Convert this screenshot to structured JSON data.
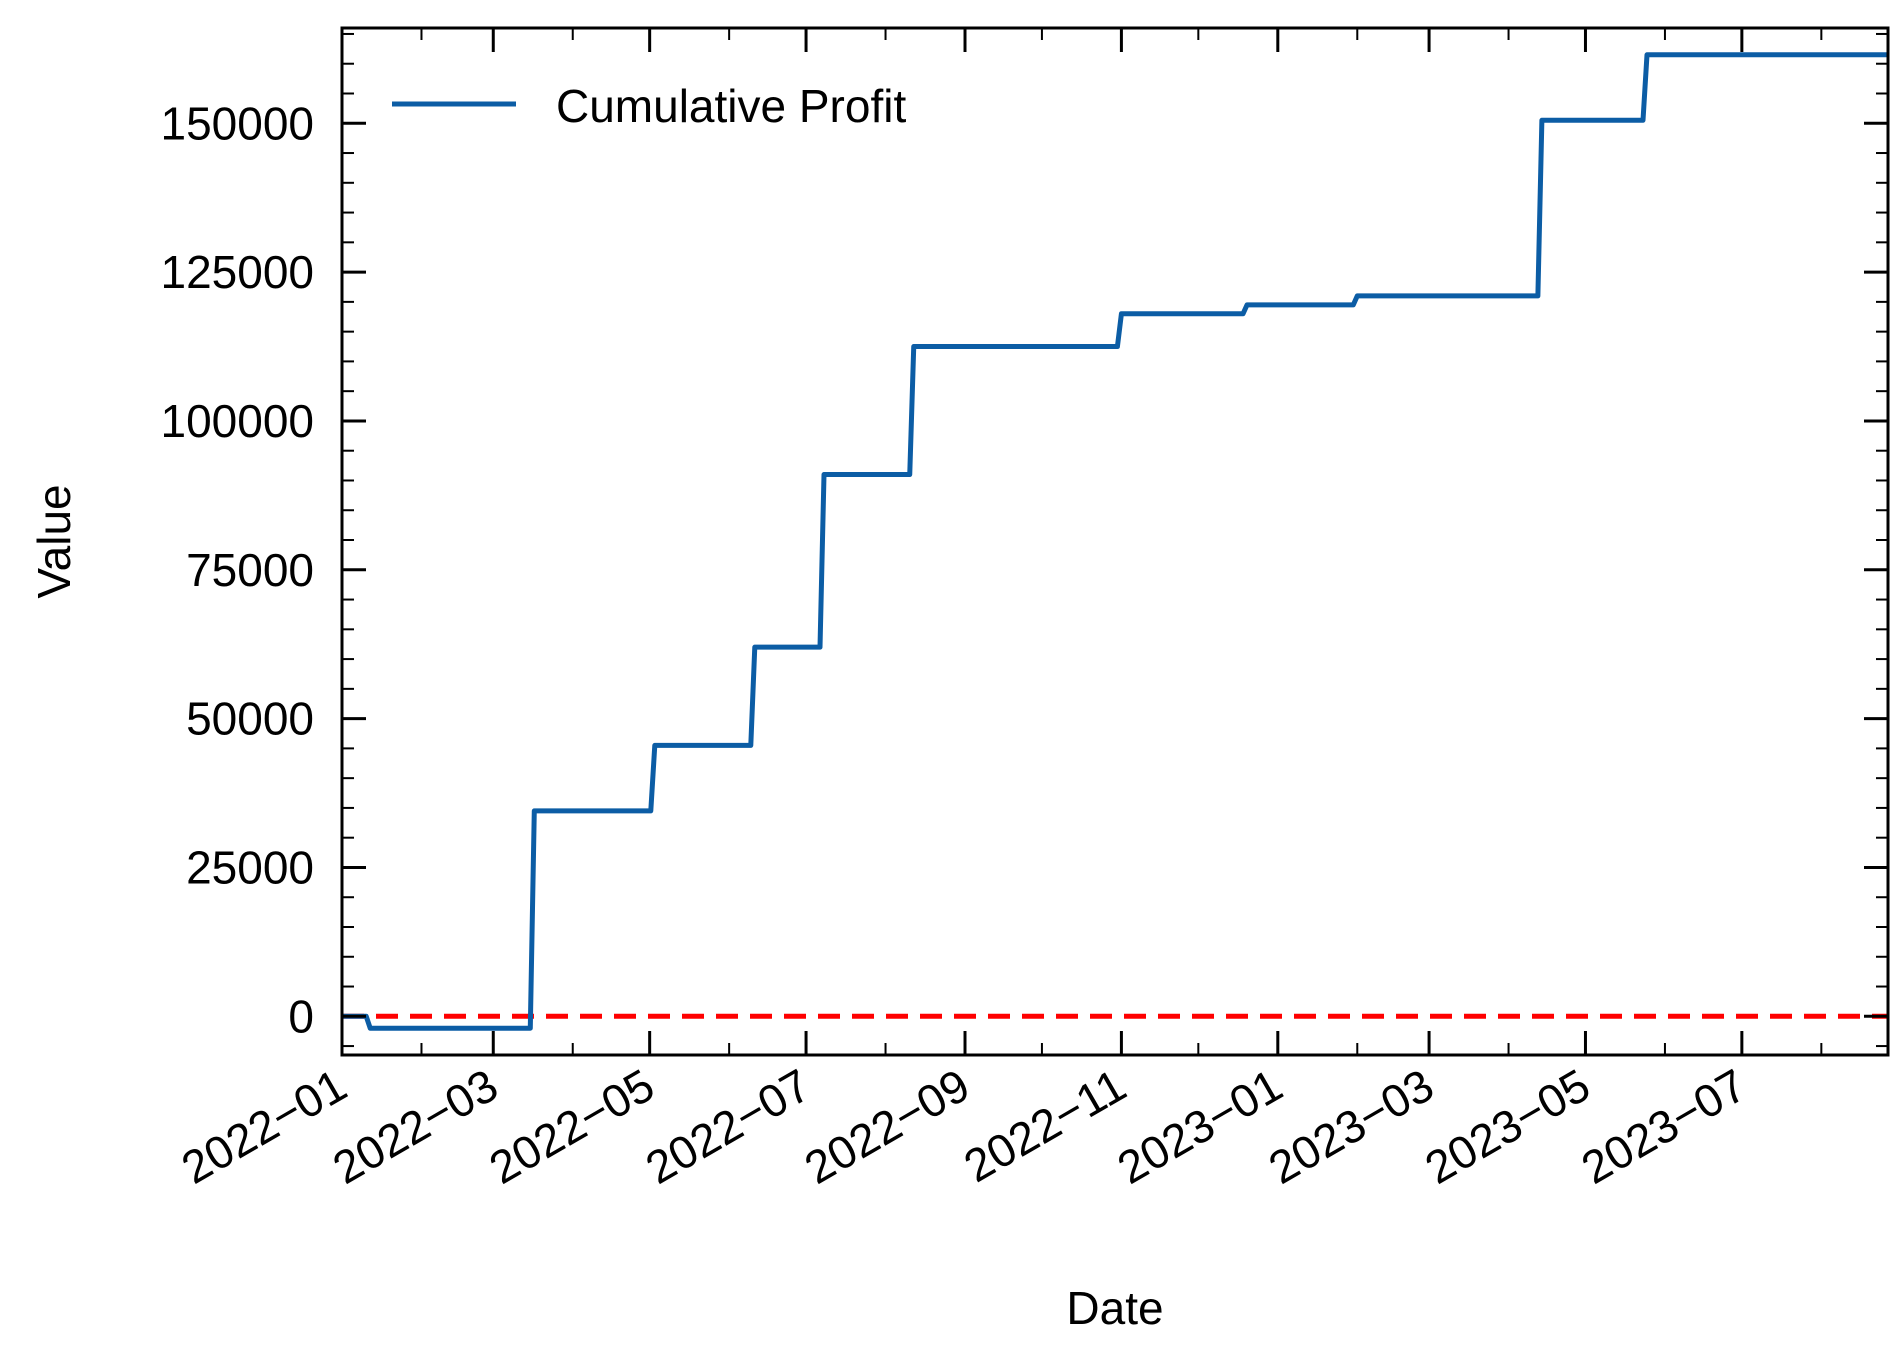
{
  "chart_data": {
    "type": "line",
    "step": true,
    "xlabel": "Date",
    "ylabel": "Value",
    "x_tick_labels": [
      "2022−01",
      "2022−03",
      "2022−05",
      "2022−07",
      "2022−09",
      "2022−11",
      "2023−01",
      "2023−03",
      "2023−05",
      "2023−07"
    ],
    "x_tick_dates": [
      "2022-01-01",
      "2022-03-01",
      "2022-05-01",
      "2022-07-01",
      "2022-09-01",
      "2022-11-01",
      "2023-01-01",
      "2023-03-01",
      "2023-05-01",
      "2023-07-01"
    ],
    "y_ticks": [
      0,
      25000,
      50000,
      75000,
      100000,
      125000,
      150000
    ],
    "xlim": [
      "2022-01-01",
      "2023-08-27"
    ],
    "ylim": [
      -6500,
      166000
    ],
    "grid": false,
    "legend_position": "top-left",
    "series": [
      {
        "name": "Cumulative Profit",
        "color": "#0C5DA5",
        "points": [
          {
            "x": "2022-01-01",
            "y": 0
          },
          {
            "x": "2022-01-12",
            "y": -2000
          },
          {
            "x": "2022-03-17",
            "y": 34500
          },
          {
            "x": "2022-05-03",
            "y": 45500
          },
          {
            "x": "2022-06-11",
            "y": 62000
          },
          {
            "x": "2022-07-08",
            "y": 91000
          },
          {
            "x": "2022-08-12",
            "y": 112500
          },
          {
            "x": "2022-11-01",
            "y": 118000
          },
          {
            "x": "2022-12-20",
            "y": 119500
          },
          {
            "x": "2023-02-01",
            "y": 121000
          },
          {
            "x": "2023-04-14",
            "y": 150500
          },
          {
            "x": "2023-05-25",
            "y": 161500
          },
          {
            "x": "2023-08-27",
            "y": 161500
          }
        ]
      }
    ],
    "reference_line": {
      "y": 0,
      "color": "#FF0000",
      "style": "dashed"
    }
  }
}
